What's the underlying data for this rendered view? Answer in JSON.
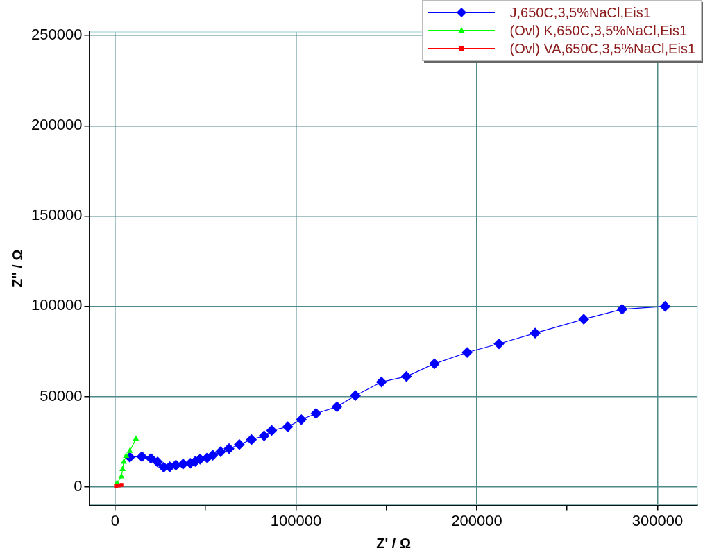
{
  "chart_data": {
    "type": "line",
    "xlabel": "Z' / Ω",
    "ylabel": "Z'' / Ω",
    "xlim": [
      -14000,
      322000
    ],
    "ylim": [
      -10000,
      252000
    ],
    "xticks": [
      0,
      {
        "value": 50000,
        "label": null
      },
      100000,
      {
        "value": 150000,
        "label": null
      },
      200000,
      {
        "value": 250000,
        "label": null
      },
      300000
    ],
    "yticks": [
      0,
      50000,
      100000,
      150000,
      200000,
      250000
    ],
    "grid": true,
    "legend": "top right",
    "line_style": "solid",
    "series": [
      {
        "name": "J,650C,3,5%NaCl,Eis1",
        "color": "#0000ff",
        "marker": "diamond",
        "x": [
          8100,
          14800,
          19800,
          23500,
          26900,
          30200,
          33600,
          37600,
          41600,
          44300,
          47000,
          50900,
          54000,
          58300,
          63000,
          68700,
          75400,
          82400,
          86600,
          95500,
          103000,
          111100,
          122700,
          132900,
          147300,
          161100,
          176600,
          194700,
          212300,
          232300,
          259200,
          280400,
          304200
        ],
        "values": [
          16400,
          16700,
          15700,
          13700,
          10800,
          11000,
          12000,
          12600,
          13000,
          14000,
          15300,
          16000,
          17500,
          19400,
          21100,
          23400,
          26100,
          28200,
          31200,
          33200,
          37200,
          40600,
          44300,
          50500,
          58000,
          61100,
          68100,
          74400,
          79200,
          85100,
          92800,
          98300,
          99900
        ]
      },
      {
        "name": "(Ovl) K,650C,3,5%NaCl,Eis1",
        "color": "#00ff00",
        "marker": "triangle",
        "x": [
          1000,
          3500,
          4100,
          4800,
          6100,
          8100,
          11500
        ],
        "values": [
          2000,
          5600,
          9700,
          13700,
          17000,
          19800,
          26500
        ]
      },
      {
        "name": "(Ovl) VA,650C,3,5%NaCl,Eis1",
        "type": "scatter",
        "color": "#ff0000",
        "marker": "square",
        "x": [
          500,
          2000,
          3500
        ],
        "values": [
          400,
          700,
          1000
        ]
      }
    ]
  }
}
